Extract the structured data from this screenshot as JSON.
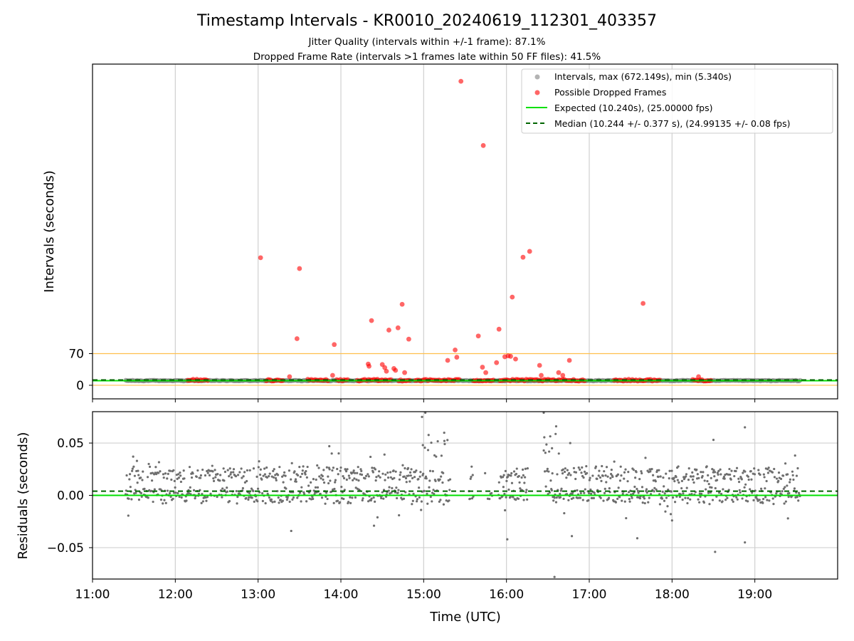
{
  "chart_data": {
    "type": "scatter",
    "title": "Timestamp Intervals - KR0010_20240619_112301_403357",
    "subtitle_lines": [
      "Jitter Quality (intervals within +/-1 frame): 87.1%",
      "Dropped Frame Rate (intervals >1 frames late within 50 FF files): 41.5%"
    ],
    "xlabel": "Time (UTC)",
    "x_ticks": [
      "11:00",
      "12:00",
      "13:00",
      "14:00",
      "15:00",
      "16:00",
      "17:00",
      "18:00",
      "19:00"
    ],
    "x_range_hours": [
      11.0,
      20.0
    ],
    "grid": true,
    "colors": {
      "intervals": "#808080",
      "dropped": "#ff0000",
      "expected": "#00e000",
      "median": "#006400",
      "threshold": "#ffc04d"
    },
    "top_panel": {
      "ylabel": "Intervals (seconds)",
      "y_ticks": [
        0,
        70
      ],
      "ylim": [
        -30,
        710
      ],
      "threshold_lines": [
        0,
        70
      ],
      "legend_position": "top-right",
      "legend": [
        "Intervals, max (672.149s), min (5.340s)",
        "Possible Dropped Frames",
        "Expected (10.240s), (25.00000 fps)",
        "Median (10.244 +/- 0.377 s), (24.99135 +/- 0.08 fps)"
      ],
      "expected_value": 10.24,
      "median_value": 10.244,
      "interval_range_hours": [
        11.4,
        19.55
      ],
      "dropped_points": [
        {
          "x": 13.03,
          "y": 282
        },
        {
          "x": 13.5,
          "y": 258
        },
        {
          "x": 13.47,
          "y": 103
        },
        {
          "x": 13.92,
          "y": 90
        },
        {
          "x": 14.37,
          "y": 143
        },
        {
          "x": 14.58,
          "y": 122
        },
        {
          "x": 14.69,
          "y": 127
        },
        {
          "x": 14.74,
          "y": 179
        },
        {
          "x": 14.82,
          "y": 102
        },
        {
          "x": 15.45,
          "y": 672
        },
        {
          "x": 15.38,
          "y": 78
        },
        {
          "x": 15.4,
          "y": 62
        },
        {
          "x": 15.29,
          "y": 55
        },
        {
          "x": 15.66,
          "y": 109
        },
        {
          "x": 15.72,
          "y": 530
        },
        {
          "x": 15.71,
          "y": 40
        },
        {
          "x": 15.88,
          "y": 50
        },
        {
          "x": 15.91,
          "y": 124
        },
        {
          "x": 15.98,
          "y": 63
        },
        {
          "x": 16.02,
          "y": 65
        },
        {
          "x": 16.05,
          "y": 64
        },
        {
          "x": 16.07,
          "y": 195
        },
        {
          "x": 16.11,
          "y": 58
        },
        {
          "x": 16.2,
          "y": 283
        },
        {
          "x": 16.28,
          "y": 296
        },
        {
          "x": 16.4,
          "y": 44
        },
        {
          "x": 16.76,
          "y": 55
        },
        {
          "x": 17.65,
          "y": 181
        },
        {
          "x": 14.33,
          "y": 47
        },
        {
          "x": 14.34,
          "y": 42
        },
        {
          "x": 14.5,
          "y": 46
        },
        {
          "x": 14.53,
          "y": 39
        },
        {
          "x": 14.55,
          "y": 31
        },
        {
          "x": 14.64,
          "y": 37
        },
        {
          "x": 14.66,
          "y": 33
        },
        {
          "x": 14.77,
          "y": 28
        },
        {
          "x": 13.38,
          "y": 19
        },
        {
          "x": 13.9,
          "y": 22
        },
        {
          "x": 15.75,
          "y": 28
        },
        {
          "x": 16.63,
          "y": 28
        },
        {
          "x": 16.42,
          "y": 22
        },
        {
          "x": 16.68,
          "y": 22
        },
        {
          "x": 18.32,
          "y": 19
        }
      ]
    },
    "bottom_panel": {
      "ylabel": "Residuals (seconds)",
      "y_ticks": [
        "0.05",
        "0.00",
        "−0.05"
      ],
      "y_tick_values": [
        0.05,
        0.0,
        -0.05
      ],
      "ylim": [
        -0.08,
        0.08
      ],
      "expected_residual": 0.0,
      "median_residual": 0.004,
      "outliers": [
        {
          "x": 14.98,
          "y": 0.075
        },
        {
          "x": 15.02,
          "y": 0.079
        },
        {
          "x": 16.45,
          "y": 0.079
        },
        {
          "x": 16.58,
          "y": -0.078
        },
        {
          "x": 18.52,
          "y": -0.054
        },
        {
          "x": 18.88,
          "y": -0.045
        },
        {
          "x": 18.88,
          "y": 0.065
        },
        {
          "x": 16.77,
          "y": 0.05
        },
        {
          "x": 18.5,
          "y": 0.053
        },
        {
          "x": 16.01,
          "y": -0.042
        },
        {
          "x": 16.79,
          "y": -0.039
        },
        {
          "x": 17.58,
          "y": -0.041
        },
        {
          "x": 18.0,
          "y": -0.024
        },
        {
          "x": 13.4,
          "y": -0.034
        },
        {
          "x": 13.86,
          "y": 0.047
        },
        {
          "x": 14.4,
          "y": -0.029
        },
        {
          "x": 14.99,
          "y": 0.048
        },
        {
          "x": 15.25,
          "y": 0.052
        },
        {
          "x": 16.6,
          "y": 0.066
        },
        {
          "x": 16.55,
          "y": 0.045
        },
        {
          "x": 19.4,
          "y": -0.022
        }
      ]
    }
  }
}
